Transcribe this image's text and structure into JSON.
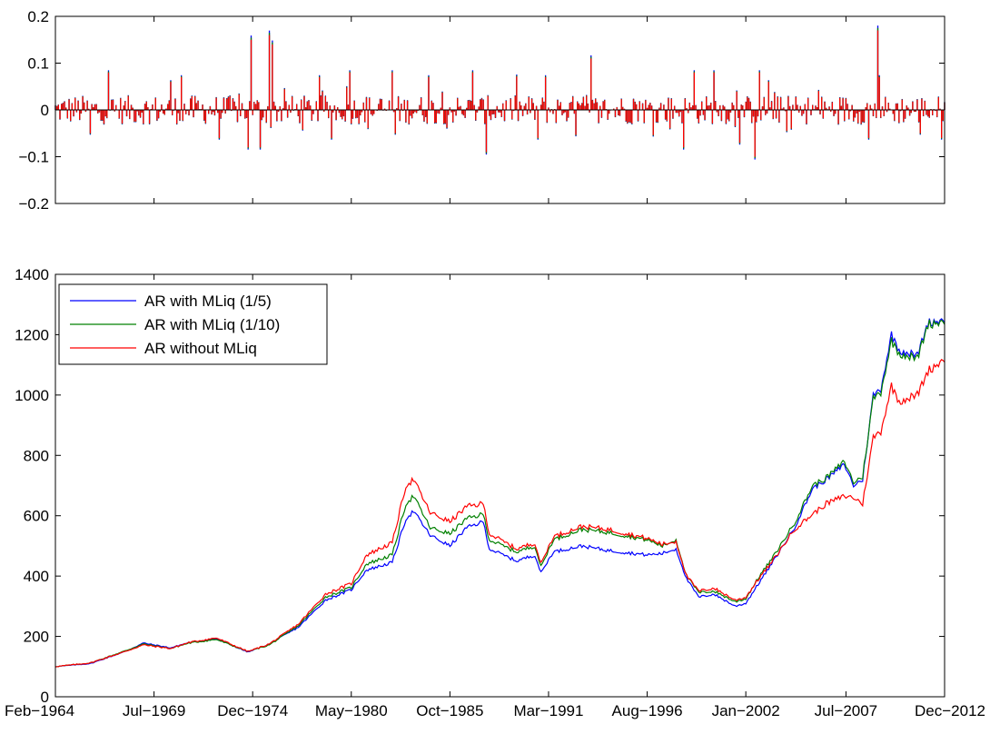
{
  "chart_data": [
    {
      "type": "bar",
      "title": "",
      "xlabel": "",
      "ylabel": "",
      "ylim": [
        -0.2,
        0.2
      ],
      "yticks": [
        -0.2,
        -0.1,
        0,
        0.1,
        0.2
      ],
      "ytick_labels": [
        "−0.2",
        "−0.1",
        "0",
        "0.1",
        "0.2"
      ],
      "x_range": [
        "1964-02",
        "2012-12"
      ],
      "grid": false,
      "notes": "Monthly returns of the three strategies overlaid as thin bars (blue, green, red), red drawn on top.",
      "series_colors": [
        "#0000ff",
        "#008000",
        "#ff0000"
      ],
      "spikes": [
        {
          "date": "1966-01",
          "value": -0.05
        },
        {
          "date": "1967-01",
          "value": 0.08
        },
        {
          "date": "1970-06",
          "value": 0.06
        },
        {
          "date": "1971-01",
          "value": 0.07
        },
        {
          "date": "1973-02",
          "value": -0.06
        },
        {
          "date": "1974-09",
          "value": -0.08
        },
        {
          "date": "1974-11",
          "value": 0.15
        },
        {
          "date": "1975-05",
          "value": -0.08
        },
        {
          "date": "1975-11",
          "value": 0.16
        },
        {
          "date": "1976-01",
          "value": 0.14
        },
        {
          "date": "1978-08",
          "value": 0.07
        },
        {
          "date": "1979-04",
          "value": -0.06
        },
        {
          "date": "1980-04",
          "value": 0.08
        },
        {
          "date": "1982-08",
          "value": 0.08
        },
        {
          "date": "1982-10",
          "value": -0.05
        },
        {
          "date": "1984-08",
          "value": 0.07
        },
        {
          "date": "1987-01",
          "value": 0.08
        },
        {
          "date": "1987-10",
          "value": -0.09
        },
        {
          "date": "1990-08",
          "value": -0.06
        },
        {
          "date": "1991-01",
          "value": 0.07
        },
        {
          "date": "1993-07",
          "value": 0.11
        },
        {
          "date": "1998-08",
          "value": -0.08
        },
        {
          "date": "1999-03",
          "value": 0.08
        },
        {
          "date": "2000-04",
          "value": 0.08
        },
        {
          "date": "2001-09",
          "value": -0.07
        },
        {
          "date": "2002-07",
          "value": -0.1
        },
        {
          "date": "2002-10",
          "value": 0.08
        },
        {
          "date": "2003-04",
          "value": 0.06
        },
        {
          "date": "2004-07",
          "value": -0.04
        },
        {
          "date": "2008-10",
          "value": -0.06
        },
        {
          "date": "2009-04",
          "value": 0.17
        },
        {
          "date": "2009-05",
          "value": 0.07
        },
        {
          "date": "2011-08",
          "value": -0.05
        }
      ]
    },
    {
      "type": "line",
      "title": "",
      "xlabel": "",
      "ylabel": "",
      "ylim": [
        0,
        1400
      ],
      "yticks": [
        0,
        200,
        400,
        600,
        800,
        1000,
        1200,
        1400
      ],
      "x_range": [
        "1964-02",
        "2012-12"
      ],
      "x_tick_labels": [
        "Feb−1964",
        "Jul−1969",
        "Dec−1974",
        "May−1980",
        "Oct−1985",
        "Mar−1991",
        "Aug−1996",
        "Jan−2002",
        "Jul−2007",
        "Dec−2012"
      ],
      "x_tick_dates": [
        "1964-02",
        "1969-07",
        "1974-12",
        "1980-05",
        "1985-10",
        "1991-03",
        "1996-08",
        "2002-01",
        "2007-07",
        "2012-12"
      ],
      "grid": false,
      "legend_position": "top-left",
      "series": [
        {
          "name": "AR with MLiq (1/5)",
          "color": "#0000ff",
          "points": [
            [
              "1964-02",
              100
            ],
            [
              "1966-01",
              110
            ],
            [
              "1967-12",
              150
            ],
            [
              "1968-12",
              178
            ],
            [
              "1970-06",
              162
            ],
            [
              "1971-06",
              180
            ],
            [
              "1972-12",
              192
            ],
            [
              "1974-09",
              148
            ],
            [
              "1975-11",
              175
            ],
            [
              "1977-06",
              230
            ],
            [
              "1978-12",
              320
            ],
            [
              "1980-05",
              355
            ],
            [
              "1981-03",
              420
            ],
            [
              "1982-08",
              445
            ],
            [
              "1983-05",
              590
            ],
            [
              "1983-10",
              615
            ],
            [
              "1984-09",
              535
            ],
            [
              "1985-10",
              500
            ],
            [
              "1986-09",
              560
            ],
            [
              "1987-08",
              580
            ],
            [
              "1987-12",
              490
            ],
            [
              "1989-06",
              450
            ],
            [
              "1990-06",
              470
            ],
            [
              "1990-10",
              410
            ],
            [
              "1991-06",
              480
            ],
            [
              "1993-01",
              500
            ],
            [
              "1994-06",
              485
            ],
            [
              "1996-08",
              470
            ],
            [
              "1997-06",
              475
            ],
            [
              "1998-03",
              490
            ],
            [
              "1998-10",
              390
            ],
            [
              "1999-06",
              330
            ],
            [
              "2000-04",
              340
            ],
            [
              "2001-06",
              300
            ],
            [
              "2002-01",
              310
            ],
            [
              "2002-10",
              380
            ],
            [
              "2003-06",
              440
            ],
            [
              "2004-09",
              560
            ],
            [
              "2005-09",
              690
            ],
            [
              "2006-06",
              720
            ],
            [
              "2007-06",
              770
            ],
            [
              "2007-12",
              700
            ],
            [
              "2008-06",
              720
            ],
            [
              "2009-01",
              1000
            ],
            [
              "2009-06",
              1020
            ],
            [
              "2010-01",
              1200
            ],
            [
              "2010-06",
              1150
            ],
            [
              "2011-06",
              1130
            ],
            [
              "2012-01",
              1240
            ],
            [
              "2012-12",
              1250
            ]
          ]
        },
        {
          "name": "AR with MLiq (1/10)",
          "color": "#008000",
          "points": [
            [
              "1964-02",
              100
            ],
            [
              "1966-01",
              112
            ],
            [
              "1967-12",
              152
            ],
            [
              "1968-12",
              175
            ],
            [
              "1970-06",
              160
            ],
            [
              "1971-06",
              178
            ],
            [
              "1972-12",
              190
            ],
            [
              "1974-09",
              150
            ],
            [
              "1975-11",
              172
            ],
            [
              "1977-06",
              235
            ],
            [
              "1978-12",
              330
            ],
            [
              "1980-05",
              362
            ],
            [
              "1981-03",
              440
            ],
            [
              "1982-08",
              470
            ],
            [
              "1983-05",
              640
            ],
            [
              "1983-10",
              665
            ],
            [
              "1984-09",
              560
            ],
            [
              "1985-10",
              540
            ],
            [
              "1986-09",
              590
            ],
            [
              "1987-08",
              605
            ],
            [
              "1987-12",
              520
            ],
            [
              "1989-06",
              480
            ],
            [
              "1990-06",
              500
            ],
            [
              "1990-10",
              430
            ],
            [
              "1991-06",
              520
            ],
            [
              "1993-01",
              555
            ],
            [
              "1994-06",
              545
            ],
            [
              "1996-08",
              520
            ],
            [
              "1997-06",
              500
            ],
            [
              "1998-03",
              520
            ],
            [
              "1998-10",
              400
            ],
            [
              "1999-06",
              345
            ],
            [
              "2000-04",
              350
            ],
            [
              "2001-06",
              315
            ],
            [
              "2002-01",
              325
            ],
            [
              "2002-10",
              400
            ],
            [
              "2003-06",
              455
            ],
            [
              "2004-09",
              575
            ],
            [
              "2005-09",
              700
            ],
            [
              "2006-06",
              725
            ],
            [
              "2007-06",
              780
            ],
            [
              "2007-12",
              710
            ],
            [
              "2008-06",
              730
            ],
            [
              "2009-01",
              990
            ],
            [
              "2009-06",
              1010
            ],
            [
              "2010-01",
              1180
            ],
            [
              "2010-06",
              1140
            ],
            [
              "2011-06",
              1120
            ],
            [
              "2012-01",
              1235
            ],
            [
              "2012-12",
              1245
            ]
          ]
        },
        {
          "name": "AR without MLiq",
          "color": "#ff0000",
          "points": [
            [
              "1964-02",
              100
            ],
            [
              "1966-01",
              112
            ],
            [
              "1967-12",
              150
            ],
            [
              "1968-12",
              172
            ],
            [
              "1970-06",
              160
            ],
            [
              "1971-06",
              180
            ],
            [
              "1972-12",
              195
            ],
            [
              "1974-09",
              150
            ],
            [
              "1975-11",
              175
            ],
            [
              "1977-06",
              240
            ],
            [
              "1978-12",
              340
            ],
            [
              "1980-05",
              375
            ],
            [
              "1981-03",
              470
            ],
            [
              "1982-08",
              510
            ],
            [
              "1983-05",
              700
            ],
            [
              "1983-10",
              720
            ],
            [
              "1984-09",
              610
            ],
            [
              "1985-10",
              580
            ],
            [
              "1986-09",
              630
            ],
            [
              "1987-08",
              640
            ],
            [
              "1987-12",
              540
            ],
            [
              "1989-06",
              490
            ],
            [
              "1990-06",
              510
            ],
            [
              "1990-10",
              440
            ],
            [
              "1991-06",
              530
            ],
            [
              "1993-01",
              565
            ],
            [
              "1994-06",
              555
            ],
            [
              "1996-08",
              525
            ],
            [
              "1997-06",
              505
            ],
            [
              "1998-03",
              515
            ],
            [
              "1998-10",
              400
            ],
            [
              "1999-06",
              350
            ],
            [
              "2000-04",
              360
            ],
            [
              "2001-06",
              320
            ],
            [
              "2002-01",
              330
            ],
            [
              "2002-10",
              395
            ],
            [
              "2003-06",
              445
            ],
            [
              "2004-09",
              555
            ],
            [
              "2005-09",
              605
            ],
            [
              "2006-06",
              640
            ],
            [
              "2007-06",
              665
            ],
            [
              "2007-12",
              660
            ],
            [
              "2008-06",
              640
            ],
            [
              "2009-01",
              860
            ],
            [
              "2009-06",
              880
            ],
            [
              "2010-01",
              1030
            ],
            [
              "2010-06",
              980
            ],
            [
              "2011-06",
              1000
            ],
            [
              "2012-01",
              1080
            ],
            [
              "2012-12",
              1120
            ]
          ]
        }
      ]
    }
  ]
}
